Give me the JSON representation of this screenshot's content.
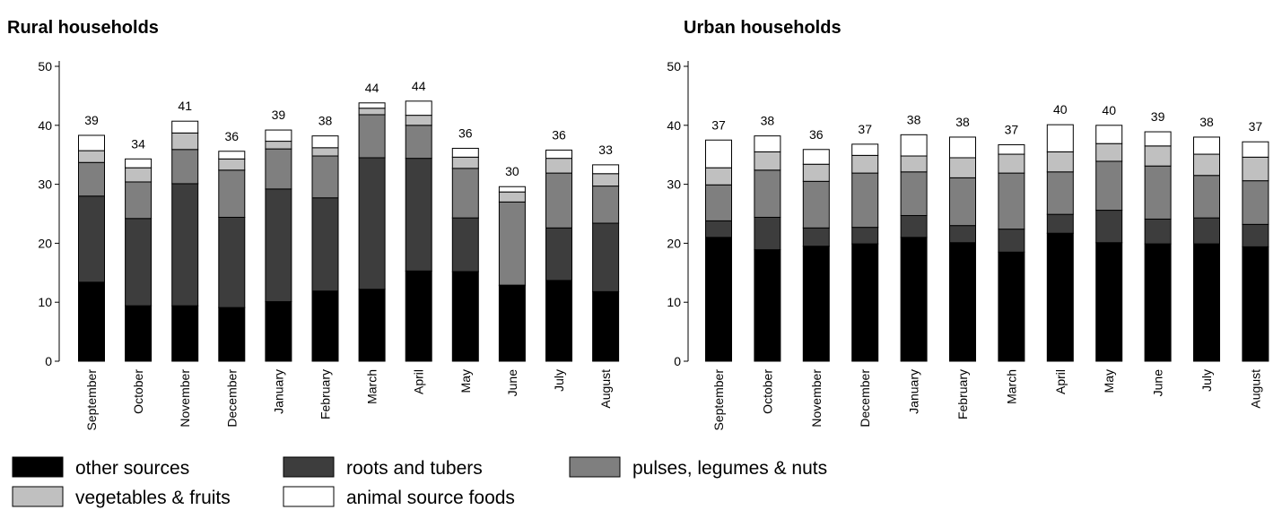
{
  "chart_data": [
    {
      "type": "stacked-bar",
      "title": "Rural households",
      "categories": [
        "September",
        "October",
        "November",
        "December",
        "January",
        "February",
        "March",
        "April",
        "May",
        "June",
        "July",
        "August"
      ],
      "series": [
        {
          "name": "other sources",
          "color": "#000000",
          "values": [
            13.4,
            9.4,
            9.4,
            9.1,
            10.1,
            11.9,
            12.2,
            15.3,
            15.2,
            12.8,
            13.7,
            11.8
          ]
        },
        {
          "name": "roots and tubers",
          "color": "#3d3d3d",
          "values": [
            14.6,
            14.8,
            20.7,
            15.3,
            19.1,
            15.8,
            22.3,
            19.1,
            9.1,
            0.1,
            8.9,
            11.6
          ]
        },
        {
          "name": "pulses, legumes & nuts",
          "color": "#7f7f7f",
          "values": [
            5.7,
            6.2,
            5.8,
            8.0,
            6.8,
            7.1,
            7.3,
            5.6,
            8.4,
            14.1,
            9.3,
            6.3
          ]
        },
        {
          "name": "vegetables & fruits",
          "color": "#c0c0c0",
          "values": [
            2.0,
            2.4,
            2.8,
            1.9,
            1.3,
            1.4,
            1.1,
            1.7,
            1.9,
            1.7,
            2.5,
            2.1
          ]
        },
        {
          "name": "animal source foods",
          "color": "#ffffff",
          "values": [
            2.6,
            1.5,
            2.0,
            1.3,
            1.9,
            2.0,
            0.9,
            2.4,
            1.5,
            0.9,
            1.4,
            1.5
          ]
        }
      ],
      "totals": [
        39,
        34,
        41,
        36,
        39,
        38,
        44,
        44,
        36,
        30,
        36,
        33
      ],
      "ylim": [
        0,
        50
      ],
      "yticks": [
        0,
        10,
        20,
        30,
        40,
        50
      ]
    },
    {
      "type": "stacked-bar",
      "title": "Urban households",
      "categories": [
        "September",
        "October",
        "November",
        "December",
        "January",
        "February",
        "March",
        "April",
        "May",
        "June",
        "July",
        "August"
      ],
      "series": [
        {
          "color": "#000000",
          "values": [
            21.0,
            18.9,
            19.5,
            19.9,
            21.0,
            20.1,
            18.5,
            21.7,
            20.1,
            19.9,
            19.9,
            19.4
          ]
        },
        {
          "color": "#3d3d3d",
          "values": [
            2.8,
            5.5,
            3.1,
            2.8,
            3.7,
            2.9,
            3.9,
            3.2,
            5.5,
            4.2,
            4.4,
            3.8
          ]
        },
        {
          "color": "#7f7f7f",
          "values": [
            6.1,
            8.0,
            7.9,
            9.2,
            7.4,
            8.1,
            9.5,
            7.2,
            8.3,
            9.0,
            7.2,
            7.4
          ]
        },
        {
          "color": "#c0c0c0",
          "values": [
            2.9,
            3.1,
            2.9,
            3.0,
            2.7,
            3.4,
            3.2,
            3.4,
            3.0,
            3.4,
            3.6,
            4.0
          ]
        },
        {
          "color": "#ffffff",
          "values": [
            4.7,
            2.7,
            2.5,
            1.9,
            3.6,
            3.5,
            1.6,
            4.6,
            3.1,
            2.4,
            2.9,
            2.6
          ]
        }
      ],
      "totals": [
        37,
        38,
        36,
        37,
        38,
        38,
        37,
        40,
        40,
        39,
        38,
        37
      ],
      "ylim": [
        0,
        50
      ],
      "yticks": [
        0,
        10,
        20,
        30,
        40,
        50
      ]
    }
  ]
}
